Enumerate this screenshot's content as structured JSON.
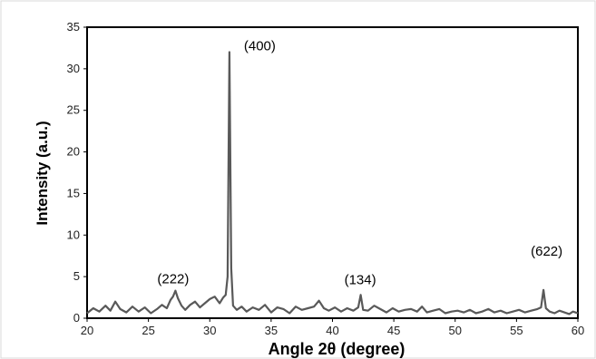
{
  "chart_data": {
    "type": "line",
    "title": "",
    "xlabel": "Angle 2θ (degree)",
    "ylabel": "Intensity (a.u.)",
    "xlim": [
      20,
      60
    ],
    "ylim": [
      0,
      35
    ],
    "grid": false,
    "x_ticks": [
      20,
      25,
      30,
      35,
      40,
      45,
      50,
      55,
      60
    ],
    "y_ticks": [
      0,
      5,
      10,
      15,
      20,
      25,
      30,
      35
    ],
    "x_tick_labels": [
      "20",
      "25",
      "30",
      "35",
      "40",
      "45",
      "50",
      "55",
      "60"
    ],
    "y_tick_labels": [
      "0",
      "5",
      "10",
      "15",
      "20",
      "25",
      "30",
      "35"
    ],
    "line_color": "#595959",
    "peaks": [
      {
        "label": "(222)",
        "x": 27.2,
        "y": 3.3
      },
      {
        "label": "(400)",
        "x": 31.6,
        "y": 32.0
      },
      {
        "label": "(134)",
        "x": 42.3,
        "y": 2.8
      },
      {
        "label": "(622)",
        "x": 57.2,
        "y": 3.4
      }
    ],
    "series": [
      {
        "x": [
          20.0,
          20.5,
          21.0,
          21.5,
          21.9,
          22.3,
          22.7,
          23.2,
          23.7,
          24.2,
          24.7,
          25.2,
          25.7,
          26.1,
          26.5,
          26.8,
          27.0,
          27.2,
          27.4,
          27.7,
          28.0,
          28.4,
          28.8,
          29.2,
          29.6,
          30.0,
          30.4,
          30.8,
          31.1,
          31.3,
          31.45,
          31.6,
          31.75,
          31.9,
          32.2,
          32.6,
          33.0,
          33.5,
          34.0,
          34.5,
          35.0,
          35.5,
          36.0,
          36.5,
          37.0,
          37.5,
          38.0,
          38.5,
          38.9,
          39.3,
          39.7,
          40.2,
          40.7,
          41.2,
          41.7,
          42.1,
          42.3,
          42.5,
          42.9,
          43.4,
          43.9,
          44.4,
          44.9,
          45.4,
          45.9,
          46.4,
          46.9,
          47.3,
          47.7,
          48.2,
          48.7,
          49.2,
          49.7,
          50.2,
          50.7,
          51.2,
          51.7,
          52.2,
          52.7,
          53.2,
          53.7,
          54.2,
          54.7,
          55.2,
          55.7,
          56.2,
          56.7,
          57.0,
          57.2,
          57.4,
          57.7,
          58.1,
          58.5,
          58.9,
          59.3,
          59.6,
          60.0
        ],
        "y": [
          0.6,
          1.2,
          0.8,
          1.5,
          0.9,
          2.0,
          1.1,
          0.7,
          1.4,
          0.8,
          1.3,
          0.6,
          1.1,
          1.6,
          1.2,
          2.2,
          2.6,
          3.3,
          2.4,
          1.5,
          1.0,
          1.6,
          2.0,
          1.3,
          1.8,
          2.3,
          2.6,
          1.8,
          2.5,
          2.8,
          5.0,
          32.0,
          6.0,
          1.5,
          1.0,
          1.4,
          0.8,
          1.3,
          1.0,
          1.6,
          0.7,
          1.3,
          1.1,
          0.6,
          1.4,
          1.0,
          1.2,
          1.4,
          2.1,
          1.2,
          0.9,
          1.3,
          0.8,
          1.2,
          0.9,
          1.3,
          2.8,
          1.0,
          0.9,
          1.5,
          1.1,
          0.7,
          1.2,
          0.8,
          1.0,
          1.1,
          0.8,
          1.4,
          0.7,
          0.9,
          1.1,
          0.6,
          0.8,
          0.9,
          0.7,
          1.0,
          0.6,
          0.8,
          1.1,
          0.7,
          0.9,
          0.6,
          0.8,
          1.0,
          0.7,
          0.9,
          1.1,
          1.3,
          3.4,
          1.2,
          0.8,
          0.6,
          0.9,
          0.7,
          0.5,
          0.8,
          0.6
        ]
      }
    ]
  }
}
